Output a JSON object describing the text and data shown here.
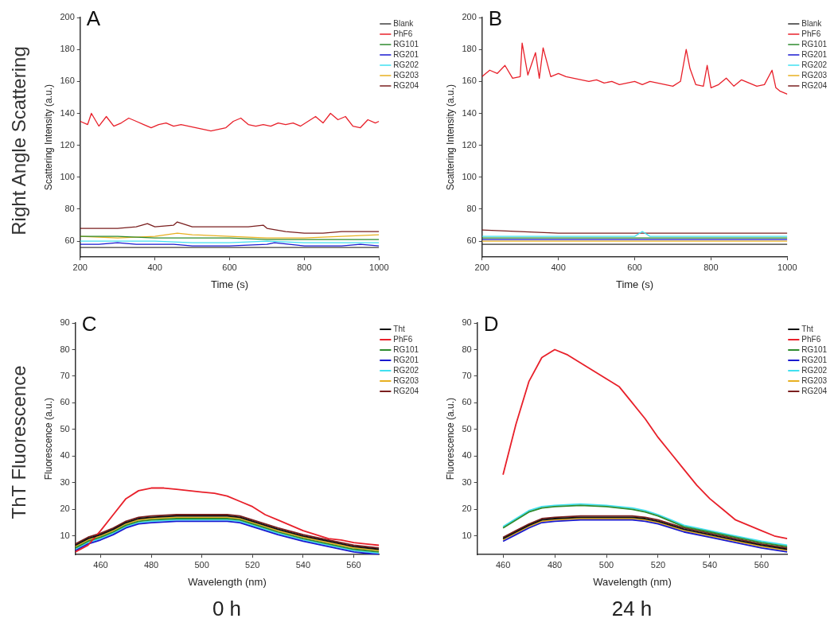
{
  "chart_data": [
    {
      "type": "line",
      "title": "A",
      "xlabel": "Time (s)",
      "ylabel": "Scattering Intensity (a.u.)",
      "annotations": [
        "Right Angle Scattering"
      ],
      "xlim": [
        200,
        1000
      ],
      "xticks": [
        200,
        400,
        600,
        800,
        1000
      ],
      "ylim": [
        50,
        200
      ],
      "yticks": [
        60,
        80,
        100,
        120,
        140,
        160,
        180,
        200
      ],
      "legend": "top right",
      "series": [
        {
          "name": "Blank",
          "color": "#404040",
          "x": [
            200,
            300,
            400,
            500,
            600,
            700,
            800,
            900,
            1000
          ],
          "values": [
            56,
            56,
            56,
            56,
            56,
            56,
            56,
            56,
            56
          ]
        },
        {
          "name": "PhF6",
          "color": "#e8202a",
          "x": [
            200,
            220,
            230,
            250,
            270,
            290,
            310,
            330,
            350,
            370,
            390,
            410,
            430,
            450,
            470,
            490,
            510,
            530,
            550,
            570,
            590,
            610,
            630,
            650,
            670,
            690,
            710,
            730,
            750,
            770,
            790,
            810,
            830,
            850,
            870,
            890,
            910,
            930,
            950,
            970,
            990,
            1000
          ],
          "values": [
            135,
            133,
            140,
            132,
            138,
            132,
            134,
            137,
            135,
            133,
            131,
            133,
            134,
            132,
            133,
            132,
            131,
            130,
            129,
            130,
            131,
            135,
            137,
            133,
            132,
            133,
            132,
            134,
            133,
            134,
            132,
            135,
            138,
            134,
            140,
            136,
            138,
            132,
            131,
            136,
            134,
            135
          ]
        },
        {
          "name": "RG101",
          "color": "#2e8b2e",
          "x": [
            200,
            300,
            400,
            500,
            600,
            700,
            800,
            900,
            1000
          ],
          "values": [
            63,
            63,
            62,
            62,
            62,
            61,
            61,
            61,
            61
          ]
        },
        {
          "name": "RG201",
          "color": "#1a1ad0",
          "x": [
            200,
            250,
            300,
            350,
            400,
            450,
            500,
            600,
            700,
            720,
            800,
            900,
            950,
            1000
          ],
          "values": [
            58,
            58,
            59,
            58,
            58,
            58,
            57,
            57,
            58,
            59,
            57,
            57,
            58,
            57
          ]
        },
        {
          "name": "RG202",
          "color": "#40e0f0",
          "x": [
            200,
            300,
            400,
            500,
            600,
            700,
            800,
            900,
            1000
          ],
          "values": [
            60,
            60,
            60,
            59,
            59,
            60,
            59,
            59,
            59
          ]
        },
        {
          "name": "RG203",
          "color": "#e8b020",
          "x": [
            200,
            300,
            400,
            460,
            500,
            600,
            700,
            800,
            900,
            1000
          ],
          "values": [
            63,
            62,
            63,
            65,
            64,
            63,
            62,
            62,
            63,
            64
          ]
        },
        {
          "name": "RG204",
          "color": "#7a1f1f",
          "x": [
            200,
            250,
            300,
            350,
            380,
            400,
            450,
            460,
            500,
            550,
            600,
            650,
            690,
            700,
            750,
            800,
            850,
            900,
            950,
            1000
          ],
          "values": [
            68,
            68,
            68,
            69,
            71,
            69,
            70,
            72,
            69,
            69,
            69,
            69,
            70,
            68,
            66,
            65,
            65,
            66,
            66,
            66
          ]
        }
      ]
    },
    {
      "type": "line",
      "title": "B",
      "xlabel": "Time (s)",
      "ylabel": "Scattering Intensity (a.u.)",
      "xlim": [
        200,
        1000
      ],
      "xticks": [
        200,
        400,
        600,
        800,
        1000
      ],
      "ylim": [
        50,
        200
      ],
      "yticks": [
        60,
        80,
        100,
        120,
        140,
        160,
        180,
        200
      ],
      "legend": "top right",
      "series": [
        {
          "name": "Blank",
          "color": "#303030",
          "x": [
            200,
            300,
            400,
            500,
            600,
            700,
            800,
            900,
            1000
          ],
          "values": [
            58,
            58,
            58,
            58,
            58,
            58,
            58,
            58,
            58
          ]
        },
        {
          "name": "PhF6",
          "color": "#e8202a",
          "x": [
            200,
            220,
            240,
            260,
            280,
            300,
            305,
            320,
            340,
            350,
            360,
            380,
            400,
            420,
            440,
            460,
            480,
            500,
            520,
            540,
            560,
            580,
            600,
            620,
            640,
            660,
            680,
            700,
            720,
            735,
            745,
            760,
            780,
            790,
            800,
            820,
            840,
            860,
            880,
            900,
            920,
            940,
            960,
            970,
            980,
            1000
          ],
          "values": [
            163,
            167,
            165,
            170,
            162,
            163,
            184,
            164,
            178,
            162,
            181,
            163,
            165,
            163,
            162,
            161,
            160,
            161,
            159,
            160,
            158,
            159,
            160,
            158,
            160,
            159,
            158,
            157,
            160,
            180,
            168,
            158,
            157,
            170,
            156,
            158,
            162,
            157,
            161,
            159,
            157,
            158,
            167,
            156,
            154,
            152
          ]
        },
        {
          "name": "RG101",
          "color": "#2e8b2e",
          "x": [
            200,
            300,
            400,
            500,
            600,
            700,
            800,
            900,
            1000
          ],
          "values": [
            62,
            62,
            62,
            62,
            62,
            62,
            62,
            62,
            62
          ]
        },
        {
          "name": "RG201",
          "color": "#1a1ad0",
          "x": [
            200,
            300,
            400,
            500,
            600,
            700,
            800,
            900,
            1000
          ],
          "values": [
            61,
            61,
            61,
            61,
            61,
            61,
            61,
            61,
            61
          ]
        },
        {
          "name": "RG202",
          "color": "#40e0f0",
          "x": [
            200,
            300,
            400,
            500,
            600,
            620,
            640,
            700,
            800,
            900,
            1000
          ],
          "values": [
            63,
            63,
            63,
            63,
            63,
            66,
            63,
            63,
            63,
            63,
            63
          ]
        },
        {
          "name": "RG203",
          "color": "#e8b020",
          "x": [
            200,
            300,
            400,
            500,
            600,
            700,
            800,
            900,
            1000
          ],
          "values": [
            60,
            60,
            60,
            60,
            60,
            60,
            60,
            60,
            60
          ]
        },
        {
          "name": "RG204",
          "color": "#7a1f1f",
          "x": [
            200,
            300,
            400,
            500,
            600,
            700,
            800,
            900,
            1000
          ],
          "values": [
            67,
            66,
            65,
            65,
            65,
            65,
            65,
            65,
            65
          ]
        }
      ]
    },
    {
      "type": "line",
      "title": "C",
      "xlabel": "Wavelength (nm)",
      "ylabel": "Fluorescence (a.u.)",
      "annotations": [
        "ThT Fluorescence",
        "0 h"
      ],
      "xlim": [
        450,
        570
      ],
      "xticks": [
        460,
        480,
        500,
        520,
        540,
        560
      ],
      "ylim": [
        3,
        90
      ],
      "yticks": [
        10,
        20,
        30,
        40,
        50,
        60,
        70,
        80,
        90
      ],
      "legend": "top right",
      "series": [
        {
          "name": "Tht",
          "color": "#101010",
          "x": [
            450,
            455,
            460,
            465,
            470,
            475,
            480,
            490,
            500,
            510,
            515,
            520,
            525,
            530,
            540,
            550,
            560,
            570
          ],
          "values": [
            6.5,
            9,
            10.5,
            12.5,
            15,
            16.5,
            17,
            17.5,
            17.5,
            17.5,
            17,
            15.5,
            14,
            12.5,
            10,
            8,
            6,
            5
          ]
        },
        {
          "name": "PhF6",
          "color": "#e8202a",
          "x": [
            450,
            455,
            460,
            465,
            470,
            475,
            480,
            485,
            490,
            495,
            500,
            505,
            510,
            515,
            520,
            525,
            530,
            535,
            540,
            545,
            550,
            555,
            560,
            565,
            570
          ],
          "values": [
            4,
            6.5,
            12,
            18,
            24,
            27,
            28,
            28,
            27.5,
            27,
            26.5,
            26,
            25,
            23,
            21,
            18,
            16,
            14,
            12,
            10.5,
            9,
            8.5,
            7.5,
            7,
            6.5
          ]
        },
        {
          "name": "RG101",
          "color": "#2e8b2e",
          "x": [
            450,
            455,
            460,
            465,
            470,
            475,
            480,
            490,
            500,
            510,
            515,
            520,
            525,
            530,
            540,
            550,
            560,
            570
          ],
          "values": [
            5.5,
            8,
            9.5,
            11.5,
            14,
            15.5,
            16,
            16.5,
            16.5,
            16.5,
            16,
            14.5,
            13,
            11.5,
            9,
            7,
            5,
            4
          ]
        },
        {
          "name": "RG201",
          "color": "#1a1ad0",
          "x": [
            450,
            455,
            460,
            465,
            470,
            475,
            480,
            490,
            500,
            510,
            515,
            520,
            525,
            530,
            540,
            550,
            560,
            570
          ],
          "values": [
            4.5,
            7,
            8.5,
            10.5,
            13,
            14.5,
            15,
            15.5,
            15.5,
            15.5,
            15,
            13.5,
            12,
            10.5,
            8,
            6,
            4,
            3
          ]
        },
        {
          "name": "RG202",
          "color": "#40e0f0",
          "x": [
            450,
            455,
            460,
            465,
            470,
            475,
            480,
            490,
            500,
            510,
            515,
            520,
            525,
            530,
            540,
            550,
            560,
            570
          ],
          "values": [
            5,
            7.5,
            9,
            11,
            13.5,
            15,
            15.5,
            16,
            16,
            16,
            15.5,
            14,
            12.5,
            11,
            8.5,
            6.5,
            4.5,
            3.5
          ]
        },
        {
          "name": "RG203",
          "color": "#e8b020",
          "x": [
            450,
            455,
            460,
            465,
            470,
            475,
            480,
            490,
            500,
            510,
            515,
            520,
            525,
            530,
            540,
            550,
            560,
            570
          ],
          "values": [
            6,
            8.5,
            10,
            12,
            14.5,
            16,
            16.5,
            17,
            17,
            17,
            16.5,
            15,
            13.5,
            12,
            9.5,
            7.5,
            5.5,
            4.5
          ]
        },
        {
          "name": "RG204",
          "color": "#7a1f1f",
          "x": [
            450,
            455,
            460,
            465,
            470,
            475,
            480,
            490,
            500,
            510,
            515,
            520,
            525,
            530,
            540,
            550,
            560,
            570
          ],
          "values": [
            7,
            9.5,
            11,
            13,
            15.5,
            17,
            17.5,
            18,
            18,
            18,
            17.5,
            16,
            14.5,
            13,
            10.5,
            8.5,
            6.5,
            5.5
          ]
        }
      ]
    },
    {
      "type": "line",
      "title": "D",
      "xlabel": "Wavelength (nm)",
      "ylabel": "Fluorescence (a.u.)",
      "annotations": [
        "24 h"
      ],
      "xlim": [
        450,
        570
      ],
      "xticks": [
        460,
        480,
        500,
        520,
        540,
        560
      ],
      "ylim": [
        3,
        90
      ],
      "yticks": [
        10,
        20,
        30,
        40,
        50,
        60,
        70,
        80,
        90
      ],
      "legend": "top right",
      "series": [
        {
          "name": "Tht",
          "color": "#101010",
          "x": [
            460,
            465,
            470,
            475,
            480,
            490,
            500,
            510,
            515,
            520,
            525,
            530,
            540,
            550,
            560,
            570
          ],
          "values": [
            9,
            11.5,
            14,
            16,
            16.5,
            17,
            17,
            17,
            16.5,
            15.5,
            14,
            12.5,
            10.5,
            8.5,
            6.5,
            5
          ]
        },
        {
          "name": "PhF6",
          "color": "#e8202a",
          "x": [
            460,
            465,
            470,
            475,
            480,
            485,
            490,
            495,
            500,
            505,
            510,
            515,
            520,
            525,
            530,
            535,
            540,
            545,
            550,
            555,
            560,
            565,
            570
          ],
          "values": [
            33,
            52,
            68,
            77,
            80,
            78,
            75,
            72,
            69,
            66,
            60,
            54,
            47,
            41,
            35,
            29,
            24,
            20,
            16,
            14,
            12,
            10,
            9
          ]
        },
        {
          "name": "RG101",
          "color": "#2e8b2e",
          "x": [
            460,
            465,
            470,
            475,
            480,
            490,
            500,
            510,
            515,
            520,
            525,
            530,
            540,
            550,
            560,
            570
          ],
          "values": [
            13,
            16,
            19,
            20.5,
            21,
            21.5,
            21,
            20,
            19,
            17.5,
            15.5,
            13.5,
            11.5,
            9.5,
            7.5,
            6
          ]
        },
        {
          "name": "RG201",
          "color": "#1a1ad0",
          "x": [
            460,
            465,
            470,
            475,
            480,
            490,
            500,
            510,
            515,
            520,
            525,
            530,
            540,
            550,
            560,
            570
          ],
          "values": [
            8,
            10.5,
            13,
            15,
            15.5,
            16,
            16,
            16,
            15.5,
            14.5,
            13,
            11.5,
            9.5,
            7.5,
            5.5,
            4
          ]
        },
        {
          "name": "RG202",
          "color": "#40e0f0",
          "x": [
            460,
            465,
            470,
            475,
            480,
            490,
            500,
            510,
            515,
            520,
            525,
            530,
            540,
            550,
            560,
            570
          ],
          "values": [
            13.5,
            16.5,
            19.5,
            21,
            21.5,
            22,
            21.5,
            20.5,
            19.5,
            18,
            16,
            14,
            12,
            10,
            8,
            6.5
          ]
        },
        {
          "name": "RG203",
          "color": "#e8b020",
          "x": [
            460,
            465,
            470,
            475,
            480,
            490,
            500,
            510,
            515,
            520,
            525,
            530,
            540,
            550,
            560,
            570
          ],
          "values": [
            8.5,
            11,
            13.5,
            15.5,
            16,
            16.5,
            16.5,
            16.5,
            16,
            15,
            13.5,
            12,
            10,
            8,
            6,
            4.5
          ]
        },
        {
          "name": "RG204",
          "color": "#7a1f1f",
          "x": [
            460,
            465,
            470,
            475,
            480,
            490,
            500,
            510,
            515,
            520,
            525,
            530,
            540,
            550,
            560,
            570
          ],
          "values": [
            9.5,
            12,
            14.5,
            16.5,
            17,
            17.5,
            17.5,
            17.5,
            17,
            16,
            14.5,
            13,
            11,
            9,
            7,
            5.5
          ]
        }
      ]
    }
  ]
}
